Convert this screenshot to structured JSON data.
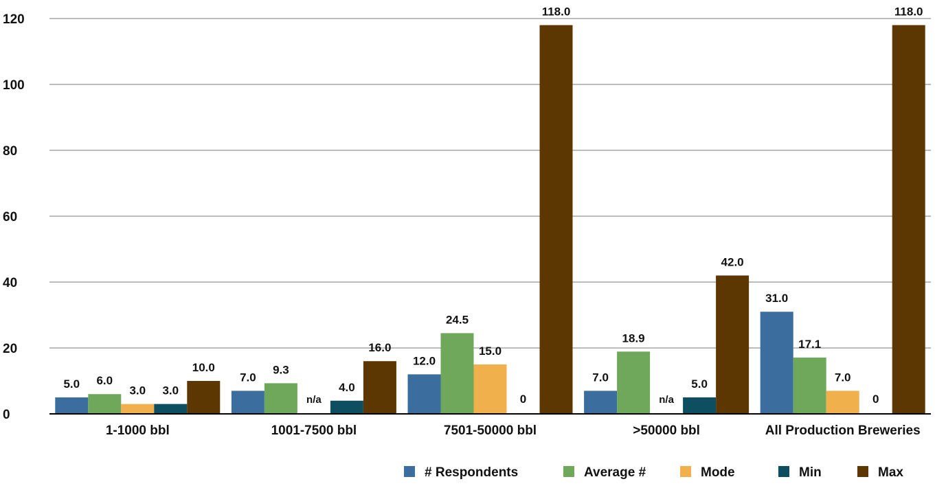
{
  "chart_data": {
    "type": "bar",
    "title": "",
    "xlabel": "",
    "ylabel": "",
    "ylim": [
      0,
      120
    ],
    "yticks": [
      0,
      20,
      40,
      60,
      80,
      100,
      120
    ],
    "grid": true,
    "legend_position": "bottom-right",
    "categories": [
      "1-1000 bbl",
      "1001-7500 bbl",
      "7501-50000 bbl",
      ">50000 bbl",
      "All Production Breweries"
    ],
    "series": [
      {
        "name": "# Respondents",
        "color": "#3b6e9f",
        "values": [
          5.0,
          7.0,
          12.0,
          7.0,
          31.0
        ],
        "labels": [
          "5.0",
          "7.0",
          "12.0",
          "7.0",
          "31.0"
        ]
      },
      {
        "name": "Average #",
        "color": "#6fa85b",
        "values": [
          6.0,
          9.3,
          24.5,
          18.9,
          17.1
        ],
        "labels": [
          "6.0",
          "9.3",
          "24.5",
          "18.9",
          "17.1"
        ]
      },
      {
        "name": "Mode",
        "color": "#f0b14d",
        "values": [
          3.0,
          null,
          15.0,
          null,
          7.0
        ],
        "labels": [
          "3.0",
          "n/a",
          "15.0",
          "n/a",
          "7.0"
        ]
      },
      {
        "name": "Min",
        "color": "#0d4f61",
        "values": [
          3.0,
          4.0,
          0,
          5.0,
          0
        ],
        "labels": [
          "3.0",
          "4.0",
          "0",
          "5.0",
          "0"
        ]
      },
      {
        "name": "Max",
        "color": "#5c3702",
        "values": [
          10.0,
          16.0,
          118.0,
          42.0,
          118.0
        ],
        "labels": [
          "10.0",
          "16.0",
          "118.0",
          "42.0",
          "118.0"
        ]
      }
    ]
  }
}
